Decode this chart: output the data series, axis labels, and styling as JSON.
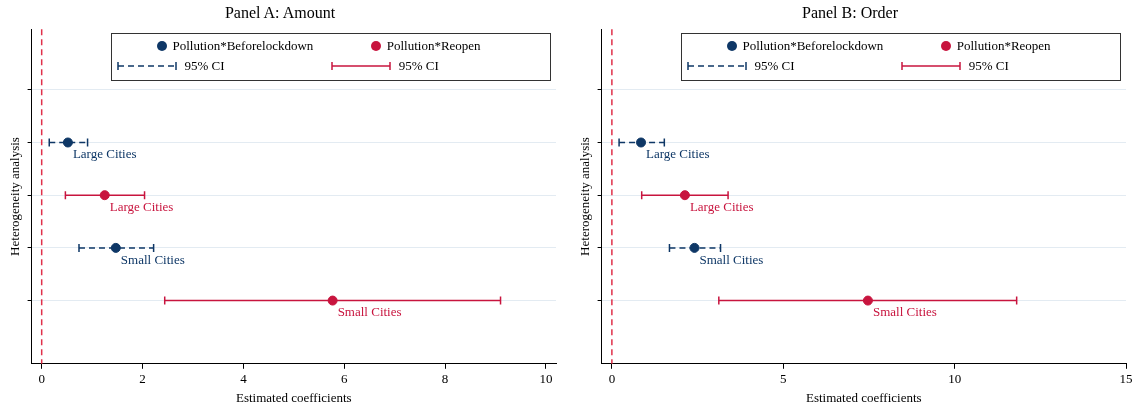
{
  "chart_data": [
    {
      "type": "scatter",
      "orientation": "horizontal",
      "title": "Panel A: Amount",
      "xlabel": "Estimated coefficients",
      "ylabel": "Heterogeneity analysis",
      "categories": [
        null,
        null,
        null,
        null,
        null
      ],
      "xlim": [
        -0.2,
        10.2
      ],
      "xticks": [
        0,
        2,
        4,
        6,
        8,
        10
      ],
      "tick_labels": "x",
      "grid": "y",
      "legend": "top right",
      "marker": "circle",
      "ref_lines": [
        {
          "axis": "x",
          "value": 0,
          "color": "#e0304a",
          "line_style": "dashed"
        }
      ],
      "annotations": [
        "95% CI",
        "95% CI"
      ],
      "series": [
        {
          "name": "Pollution*Beforelockdown",
          "color": "#0e3766",
          "line_style": "dashed",
          "values": [
            null,
            0.52,
            null,
            1.47,
            null
          ],
          "errors": [
            null,
            [
              0.15,
              0.91
            ],
            null,
            [
              0.74,
              2.22
            ],
            null
          ],
          "value_labels": [
            null,
            "Large Cities",
            null,
            "Small Cities",
            null
          ]
        },
        {
          "name": "Pollution*Reopen",
          "color": "#c8143e",
          "line_style": "solid",
          "values": [
            null,
            null,
            1.25,
            null,
            5.77
          ],
          "errors": [
            null,
            null,
            [
              0.47,
              2.04
            ],
            null,
            [
              2.44,
              9.1
            ]
          ],
          "value_labels": [
            null,
            null,
            "Large Cities",
            null,
            "Small Cities"
          ]
        }
      ]
    },
    {
      "type": "scatter",
      "orientation": "horizontal",
      "title": "Panel B: Order",
      "xlabel": "Estimated coefficients",
      "ylabel": "Heterogeneity analysis",
      "categories": [
        null,
        null,
        null,
        null,
        null
      ],
      "xlim": [
        -0.3,
        15
      ],
      "xticks": [
        0,
        5,
        10,
        15
      ],
      "tick_labels": "x",
      "grid": "y",
      "legend": "top right",
      "marker": "circle",
      "ref_lines": [
        {
          "axis": "x",
          "value": 0,
          "color": "#e0304a",
          "line_style": "dashed"
        }
      ],
      "annotations": [
        "95% CI",
        "95% CI"
      ],
      "series": [
        {
          "name": "Pollution*Beforelockdown",
          "color": "#0e3766",
          "line_style": "dashed",
          "values": [
            null,
            0.85,
            null,
            2.41,
            null
          ],
          "errors": [
            null,
            [
              0.21,
              1.53
            ],
            null,
            [
              1.68,
              3.17
            ],
            null
          ],
          "value_labels": [
            null,
            "Large Cities",
            null,
            "Small Cities",
            null
          ]
        },
        {
          "name": "Pollution*Reopen",
          "color": "#c8143e",
          "line_style": "solid",
          "values": [
            null,
            null,
            2.13,
            null,
            7.47
          ],
          "errors": [
            null,
            null,
            [
              0.87,
              3.39
            ],
            null,
            [
              3.12,
              11.81
            ]
          ],
          "value_labels": [
            null,
            null,
            "Large Cities",
            null,
            "Small Cities"
          ]
        }
      ]
    }
  ]
}
